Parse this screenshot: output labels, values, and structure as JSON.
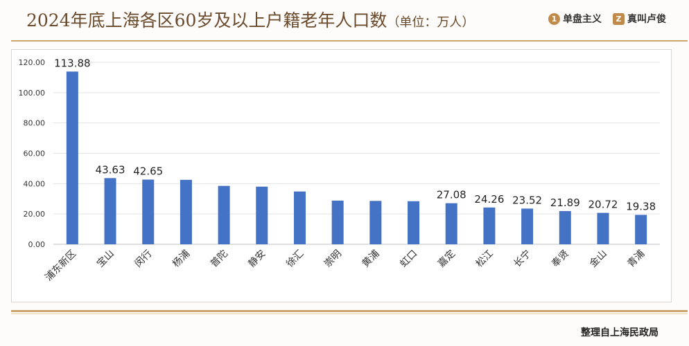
{
  "header": {
    "title": "2024年底上海各区60岁及以上户籍老年人口数",
    "unit": "（单位：万人）"
  },
  "brands": [
    {
      "icon": "1",
      "label": "单盘主义"
    },
    {
      "icon": "Z",
      "label": "真叫卢俊"
    }
  ],
  "footer": {
    "source": "整理自上海民政局"
  },
  "colors": {
    "bar": "#4472c4",
    "accent": "#c9a46b",
    "title": "#6b4a2b"
  },
  "chart_data": {
    "type": "bar",
    "title": "",
    "xlabel": "",
    "ylabel": "",
    "ylim": [
      0,
      120
    ],
    "yticks": [
      "0.00",
      "20.00",
      "40.00",
      "60.00",
      "80.00",
      "100.00",
      "120.00"
    ],
    "grid": true,
    "categories": [
      "浦东新区",
      "宝山",
      "闵行",
      "杨浦",
      "普陀",
      "静安",
      "徐汇",
      "崇明",
      "黄浦",
      "虹口",
      "嘉定",
      "松江",
      "长宁",
      "奉贤",
      "金山",
      "青浦"
    ],
    "values": [
      113.88,
      43.63,
      42.65,
      42.5,
      38.5,
      38.0,
      34.8,
      28.8,
      28.6,
      28.4,
      27.08,
      24.26,
      23.52,
      21.89,
      20.72,
      19.38
    ],
    "data_labels": [
      "113.88",
      "43.63",
      "42.65",
      "",
      "",
      "",
      "",
      "",
      "",
      "",
      "27.08",
      "24.26",
      "23.52",
      "21.89",
      "20.72",
      "19.38"
    ]
  }
}
